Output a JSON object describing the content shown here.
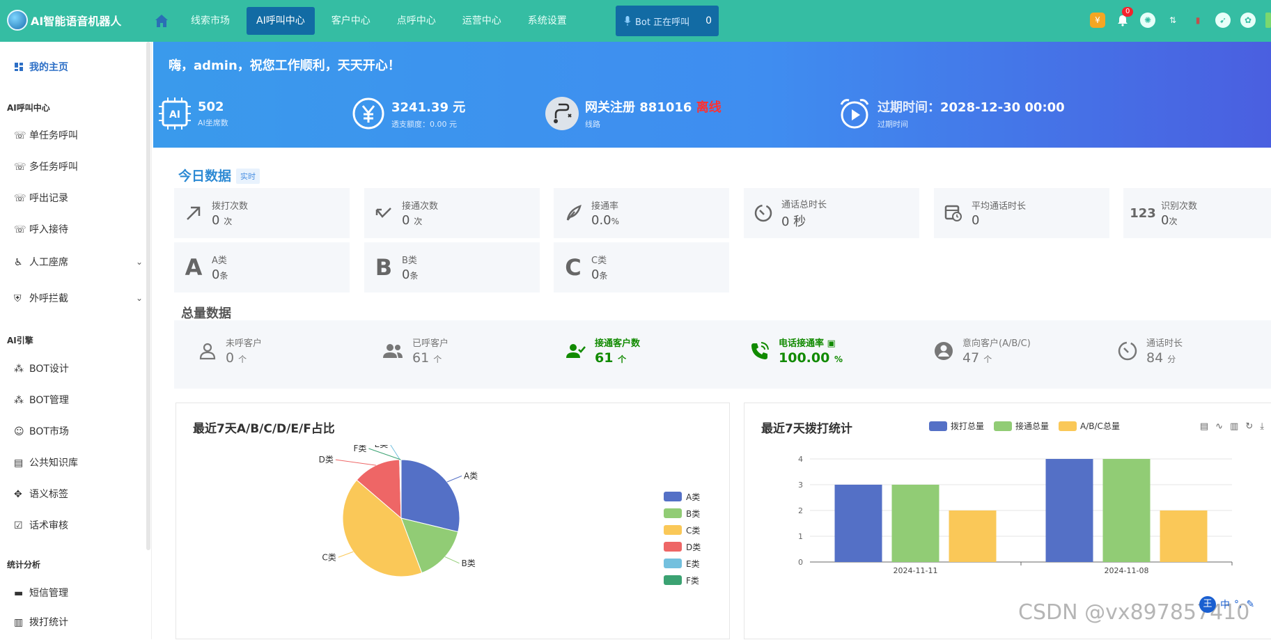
{
  "app": {
    "title": "AI智能语音机器人"
  },
  "nav": [
    "线索市场",
    "AI呼叫中心",
    "客户中心",
    "点呼中心",
    "运营中心",
    "系统设置"
  ],
  "bot_status": {
    "label": "Bot 正在呼叫",
    "count": "0"
  },
  "notifications": {
    "count": "0"
  },
  "sidebar": {
    "home": "我的主页",
    "groups": [
      "AI呼叫中心",
      "AI引擎",
      "统计分析"
    ],
    "items": [
      "单任务呼叫",
      "多任务呼叫",
      "呼出记录",
      "呼入接待",
      "人工座席",
      "外呼拦截",
      "BOT设计",
      "BOT管理",
      "BOT市场",
      "公共知识库",
      "语义标签",
      "话术审核",
      "短信管理",
      "拨打统计"
    ]
  },
  "banner": {
    "greeting": "嗨，admin，祝您工作顺利，天天开心！",
    "seats": {
      "value": "502",
      "label": "AI坐席数"
    },
    "balance": {
      "value": "3241.39 元",
      "label": "透支额度：0.00 元"
    },
    "gateway": {
      "prefix": "网关注册 881016",
      "status": "离线",
      "label": "线路"
    },
    "expire": {
      "prefix": "过期时间：",
      "value": "2028-12-30 00:00",
      "label": "过期时间"
    }
  },
  "today": {
    "title": "今日数据",
    "tag": "实时",
    "cards": [
      {
        "label": "拨打次数",
        "value": "0",
        "unit": "次"
      },
      {
        "label": "接通次数",
        "value": "0",
        "unit": "次"
      },
      {
        "label": "接通率",
        "value": "0.0",
        "unit": "%"
      },
      {
        "label": "通话总时长",
        "value": "0 秒",
        "unit": ""
      },
      {
        "label": "平均通话时长",
        "value": "0",
        "unit": ""
      },
      {
        "label": "识别次数",
        "value": "0",
        "unit": "次"
      },
      {
        "label": "A类",
        "value": "0",
        "unit": "条"
      },
      {
        "label": "B类",
        "value": "0",
        "unit": "条"
      },
      {
        "label": "C类",
        "value": "0",
        "unit": "条"
      }
    ]
  },
  "total": {
    "title": "总量数据",
    "cells": [
      {
        "label": "未呼客户",
        "value": "0",
        "unit": "个"
      },
      {
        "label": "已呼客户",
        "value": "61",
        "unit": "个"
      },
      {
        "label": "接通客户数",
        "value": "61",
        "unit": "个"
      },
      {
        "label": "电话接通率",
        "value": "100.00",
        "unit": "%"
      },
      {
        "label": "意向客户(A/B/C)",
        "value": "47",
        "unit": "个"
      },
      {
        "label": "通话时长",
        "value": "84",
        "unit": "分"
      }
    ]
  },
  "chart_data": [
    {
      "type": "pie",
      "title": "最近7天A/B/C/D/E/F占比",
      "categories": [
        "A类",
        "B类",
        "C类",
        "D类",
        "E类",
        "F类"
      ],
      "values": [
        13,
        7,
        19,
        6,
        0.1,
        0.1
      ],
      "colors": [
        "#5470c6",
        "#91cc75",
        "#fac858",
        "#ee6666",
        "#73c0de",
        "#3ba272"
      ],
      "legend": "right"
    },
    {
      "type": "bar",
      "title": "最近7天拨打统计",
      "categories": [
        "2024-11-11",
        "2024-11-08"
      ],
      "series": [
        {
          "name": "拨打总量",
          "values": [
            3,
            4
          ],
          "color": "#5470c6"
        },
        {
          "name": "接通总量",
          "values": [
            3,
            4
          ],
          "color": "#91cc75"
        },
        {
          "name": "A/B/C总量",
          "values": [
            2,
            2
          ],
          "color": "#fac858"
        }
      ],
      "ylim": [
        0,
        4
      ],
      "yticks": [
        "0",
        "1",
        "2",
        "3",
        "4"
      ],
      "grid": true,
      "legend": "top"
    }
  ],
  "watermark": "CSDN @vx897857410",
  "ime": {
    "label": "中"
  }
}
